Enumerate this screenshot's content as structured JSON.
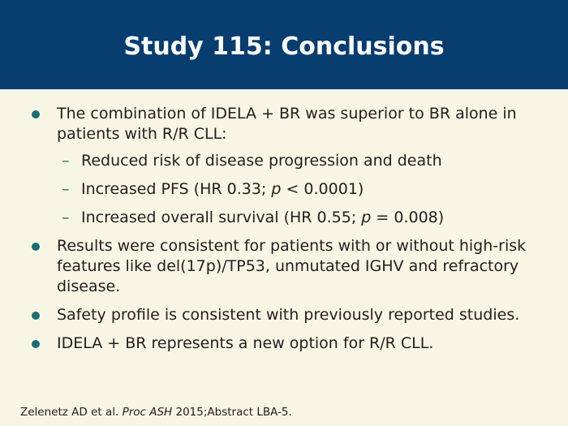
{
  "header": {
    "title": "Study 115: Conclusions"
  },
  "bullets": [
    {
      "text": "The combination of IDELA + BR was superior to BR alone in patients with R/R CLL:",
      "sub_items": [
        {
          "text": "Reduced risk of disease progression and death"
        },
        {
          "pre": "Increased PFS (HR 0.33; ",
          "italic": "p",
          "post": " < 0.0001)"
        },
        {
          "pre": "Increased overall survival (HR 0.55; ",
          "italic": "p",
          "post": " = 0.008)"
        }
      ]
    },
    {
      "text": "Results were consistent for patients with or without high-risk features like del(17p)/TP53, unmutated IGHV and refractory disease."
    },
    {
      "text": "Safety profile is consistent with previously reported studies."
    },
    {
      "text": "IDELA + BR represents a new option for R/R CLL."
    }
  ],
  "footer": {
    "authors": "Zelenetz AD et al. ",
    "journal": "Proc ASH",
    "rest": " 2015;Abstract LBA-5."
  },
  "colors": {
    "header_bg": "#083d6f",
    "slide_bg": "#f7f5e4",
    "accent": "#1b6e73"
  }
}
